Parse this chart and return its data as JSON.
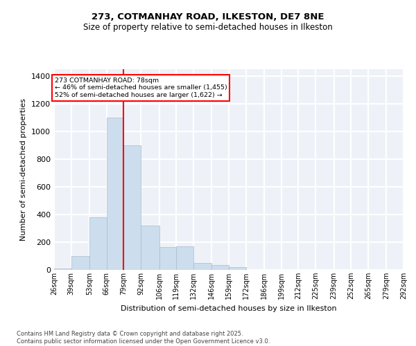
{
  "title_line1": "273, COTMANHAY ROAD, ILKESTON, DE7 8NE",
  "title_line2": "Size of property relative to semi-detached houses in Ilkeston",
  "xlabel": "Distribution of semi-detached houses by size in Ilkeston",
  "ylabel": "Number of semi-detached properties",
  "footnote": "Contains HM Land Registry data © Crown copyright and database right 2025.\nContains public sector information licensed under the Open Government Licence v3.0.",
  "annotation_title": "273 COTMANHAY ROAD: 78sqm",
  "annotation_line2": "← 46% of semi-detached houses are smaller (1,455)",
  "annotation_line3": "52% of semi-detached houses are larger (1,622) →",
  "bar_color": "#ccdded",
  "bar_edgecolor": "#aabbcc",
  "vline_color": "red",
  "background_color": "#eef2f8",
  "grid_color": "white",
  "bins": [
    26,
    39,
    53,
    66,
    79,
    92,
    106,
    119,
    132,
    146,
    159,
    172,
    186,
    199,
    212,
    225,
    239,
    252,
    265,
    279,
    292
  ],
  "bin_labels": [
    "26sqm",
    "39sqm",
    "53sqm",
    "66sqm",
    "79sqm",
    "92sqm",
    "106sqm",
    "119sqm",
    "132sqm",
    "146sqm",
    "159sqm",
    "172sqm",
    "186sqm",
    "199sqm",
    "212sqm",
    "225sqm",
    "239sqm",
    "252sqm",
    "265sqm",
    "279sqm",
    "292sqm"
  ],
  "bar_heights": [
    10,
    100,
    380,
    1100,
    900,
    320,
    165,
    170,
    50,
    35,
    20,
    0,
    0,
    0,
    0,
    0,
    0,
    0,
    0,
    0
  ],
  "vline_x": 79,
  "ylim": [
    0,
    1450
  ],
  "yticks": [
    0,
    200,
    400,
    600,
    800,
    1000,
    1200,
    1400
  ]
}
